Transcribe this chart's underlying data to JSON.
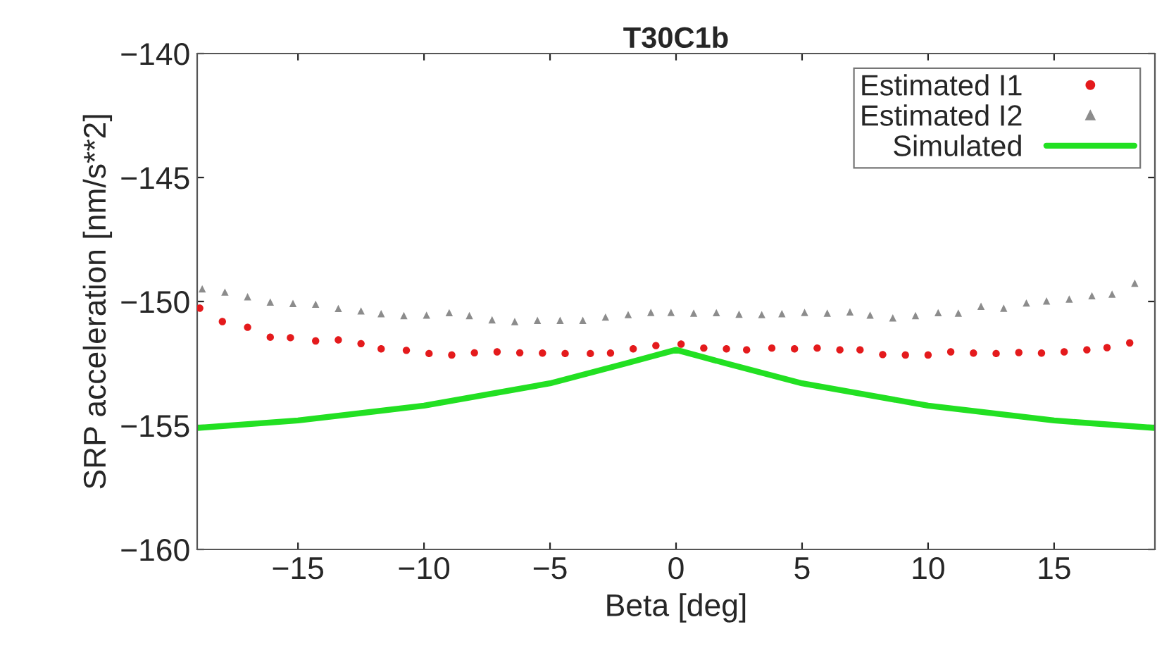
{
  "chart_data": {
    "type": "scatter",
    "title": "T30C1b",
    "xlabel": "Beta [deg]",
    "ylabel": "SRP acceleration [nm/s**2]",
    "xlim": [
      -19,
      19
    ],
    "ylim": [
      -160,
      -140
    ],
    "xticks": [
      -15,
      -10,
      -5,
      0,
      5,
      10,
      15
    ],
    "yticks": [
      -160,
      -155,
      -150,
      -145,
      -140
    ],
    "grid": false,
    "legend": "top right",
    "series": [
      {
        "name": "Estimated I1",
        "marker": "circle",
        "color": "#e41a1c",
        "x": [
          -18.9,
          -18.0,
          -17.0,
          -16.1,
          -15.3,
          -14.3,
          -13.4,
          -12.5,
          -11.7,
          -10.7,
          -9.8,
          -8.9,
          -8.0,
          -7.1,
          -6.2,
          -5.3,
          -4.4,
          -3.4,
          -2.6,
          -1.7,
          -0.8,
          0.2,
          1.1,
          2.0,
          2.8,
          3.8,
          4.7,
          5.6,
          6.5,
          7.3,
          8.2,
          9.1,
          10.0,
          10.9,
          11.8,
          12.7,
          13.6,
          14.5,
          15.4,
          16.3,
          17.1,
          18.0
        ],
        "values": [
          -150.27,
          -150.81,
          -151.04,
          -151.44,
          -151.46,
          -151.59,
          -151.55,
          -151.7,
          -151.91,
          -151.97,
          -152.1,
          -152.16,
          -152.07,
          -152.03,
          -152.07,
          -152.08,
          -152.1,
          -152.1,
          -152.08,
          -151.91,
          -151.78,
          -151.72,
          -151.88,
          -151.91,
          -151.95,
          -151.88,
          -151.91,
          -151.88,
          -151.95,
          -151.95,
          -152.14,
          -152.16,
          -152.16,
          -152.03,
          -152.08,
          -152.1,
          -152.06,
          -152.08,
          -152.03,
          -151.95,
          -151.86,
          -151.67
        ]
      },
      {
        "name": "Estimated I2",
        "marker": "triangle",
        "color": "#8c8c8c",
        "x": [
          -18.8,
          -17.9,
          -17.0,
          -16.1,
          -15.2,
          -14.3,
          -13.4,
          -12.5,
          -11.7,
          -10.8,
          -9.9,
          -9.0,
          -8.2,
          -7.3,
          -6.4,
          -5.5,
          -4.6,
          -3.7,
          -2.8,
          -1.9,
          -1.0,
          -0.2,
          0.7,
          1.6,
          2.5,
          3.4,
          4.2,
          5.1,
          6.0,
          6.9,
          7.7,
          8.6,
          9.5,
          10.4,
          11.2,
          12.1,
          13.0,
          13.9,
          14.7,
          15.6,
          16.5,
          17.3,
          18.2
        ],
        "values": [
          -149.49,
          -149.62,
          -149.81,
          -150.02,
          -150.08,
          -150.11,
          -150.28,
          -150.38,
          -150.49,
          -150.57,
          -150.55,
          -150.45,
          -150.57,
          -150.74,
          -150.81,
          -150.76,
          -150.76,
          -150.76,
          -150.63,
          -150.53,
          -150.44,
          -150.44,
          -150.47,
          -150.45,
          -150.51,
          -150.53,
          -150.49,
          -150.44,
          -150.47,
          -150.42,
          -150.55,
          -150.66,
          -150.57,
          -150.45,
          -150.47,
          -150.19,
          -150.27,
          -150.06,
          -149.98,
          -149.9,
          -149.77,
          -149.7,
          -149.26
        ]
      },
      {
        "name": "Simulated",
        "type": "line",
        "marker": "none",
        "line_style": "solid",
        "color": "#22e022",
        "x": [
          -19,
          -15,
          -10,
          -5,
          -2,
          0,
          2,
          5,
          10,
          15,
          19
        ],
        "values": [
          -155.1,
          -154.8,
          -154.2,
          -153.3,
          -152.5,
          -151.95,
          -152.5,
          -153.3,
          -154.2,
          -154.8,
          -155.1
        ]
      }
    ]
  }
}
